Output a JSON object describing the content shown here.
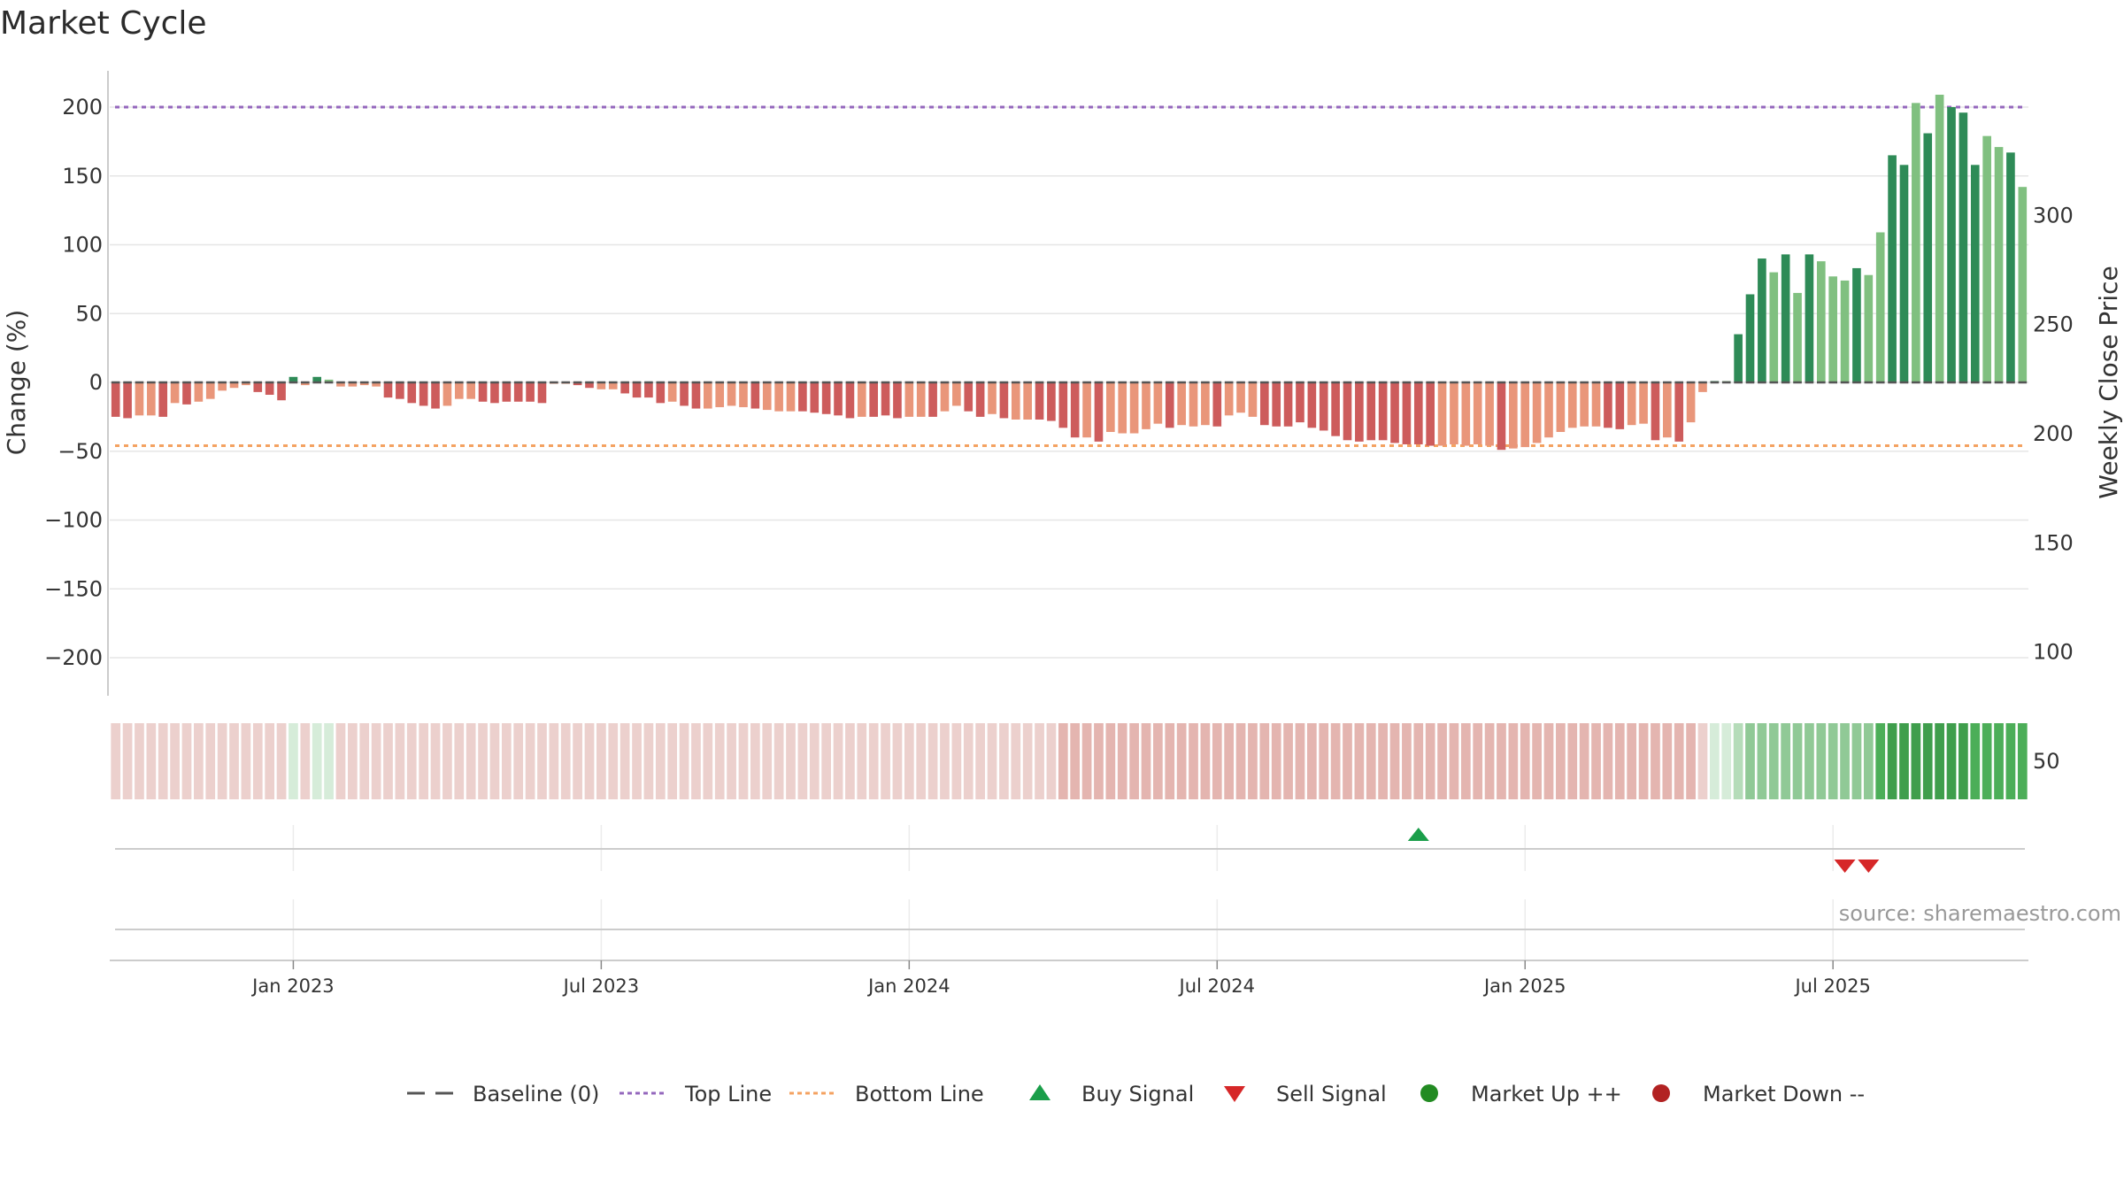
{
  "title": "Market Cycle",
  "source": "source: sharemaestro.com",
  "colors": {
    "bar_pos_dark": "#2e8b57",
    "bar_pos_light": "#80c080",
    "bar_neg_dark": "#cd5c5c",
    "bar_neg_light": "#e9967a",
    "top_line": "#9467bd",
    "bottom_line": "#f4a261",
    "baseline": "#555555",
    "buy": "#1a9e4a",
    "sell": "#d62728",
    "market_up": "#228b22",
    "market_down": "#b22222"
  },
  "legend": [
    {
      "label": "Baseline (0)",
      "kind": "dash",
      "color": "#555555"
    },
    {
      "label": "Top Line",
      "kind": "dotted",
      "color": "#9467bd"
    },
    {
      "label": "Bottom Line",
      "kind": "dotted",
      "color": "#f4a261"
    },
    {
      "label": "Buy Signal",
      "kind": "tri-up",
      "color": "#1a9e4a"
    },
    {
      "label": "Sell Signal",
      "kind": "tri-down",
      "color": "#d62728"
    },
    {
      "label": "Market Up ++",
      "kind": "dot",
      "color": "#228b22"
    },
    {
      "label": "Market Down --",
      "kind": "dot",
      "color": "#b22222"
    }
  ],
  "chart_data": {
    "type": "bar",
    "title": "Market Cycle",
    "ylabel": "Change (%)",
    "y2label": "Weekly Close Price",
    "ylim": [
      -225,
      228
    ],
    "y2lim": [
      36,
      321
    ],
    "yticks": [
      200,
      150,
      100,
      50,
      0,
      -50,
      -100,
      -150,
      -200
    ],
    "ytick_labels": [
      "200",
      "150",
      "100",
      "50",
      "0",
      "−50",
      "−100",
      "−150",
      "−200"
    ],
    "y2ticks": [
      300,
      250,
      200,
      150,
      100,
      50
    ],
    "y2tick_labels": [
      "300",
      "250",
      "200",
      "150",
      "100",
      "50"
    ],
    "top_line": 200,
    "bottom_line": -46,
    "baseline": 0,
    "x_start": "2022-10-17",
    "x_ticks": [
      {
        "label": "Jan 2023",
        "index": 15
      },
      {
        "label": "Jul 2023",
        "index": 41
      },
      {
        "label": "Jan 2024",
        "index": 67
      },
      {
        "label": "Jul 2024",
        "index": 93
      },
      {
        "label": "Jan 2025",
        "index": 119
      },
      {
        "label": "Jul 2025",
        "index": 145
      }
    ],
    "values": [
      -25,
      -26,
      -24,
      -24,
      -25,
      -15,
      -16,
      -14,
      -12,
      -6,
      -4,
      -2,
      -7,
      -9,
      -13,
      4,
      -2,
      4,
      2,
      -3,
      -3,
      -2,
      -3,
      -11,
      -12,
      -15,
      -17,
      -19,
      -17,
      -12,
      -12,
      -14,
      -15,
      -14,
      -14,
      -14,
      -15,
      -1,
      -1,
      -2,
      -4,
      -5,
      -5,
      -8,
      -11,
      -11,
      -15,
      -14,
      -17,
      -19,
      -19,
      -18,
      -17,
      -18,
      -19,
      -20,
      -21,
      -21,
      -21,
      -22,
      -23,
      -24,
      -26,
      -25,
      -25,
      -24,
      -26,
      -25,
      -25,
      -25,
      -21,
      -17,
      -21,
      -25,
      -23,
      -26,
      -27,
      -27,
      -27,
      -28,
      -33,
      -40,
      -40,
      -43,
      -36,
      -37,
      -37,
      -34,
      -30,
      -33,
      -31,
      -32,
      -31,
      -32,
      -24,
      -22,
      -25,
      -31,
      -32,
      -32,
      -29,
      -33,
      -35,
      -39,
      -42,
      -43,
      -42,
      -42,
      -44,
      -45,
      -45,
      -46,
      -46,
      -45,
      -46,
      -45,
      -46,
      -49,
      -48,
      -47,
      -44,
      -40,
      -36,
      -33,
      -32,
      -32,
      -33,
      -34,
      -31,
      -30,
      -42,
      -40,
      -43,
      -29,
      -7,
      1,
      1,
      35,
      64,
      90,
      80,
      93,
      65,
      93,
      88,
      77,
      74,
      83,
      78,
      109,
      165,
      158,
      203,
      181,
      209,
      200,
      196,
      158,
      179,
      171,
      167,
      142
    ],
    "shades": [
      2,
      2,
      1,
      1,
      2,
      1,
      2,
      1,
      1,
      1,
      1,
      1,
      2,
      2,
      2,
      2,
      1,
      2,
      1,
      1,
      1,
      1,
      1,
      2,
      2,
      2,
      2,
      2,
      1,
      1,
      1,
      2,
      2,
      2,
      2,
      2,
      2,
      1,
      1,
      2,
      2,
      1,
      1,
      2,
      2,
      2,
      2,
      1,
      2,
      2,
      1,
      1,
      1,
      1,
      2,
      1,
      1,
      1,
      2,
      2,
      2,
      2,
      2,
      1,
      2,
      2,
      2,
      1,
      1,
      2,
      1,
      1,
      2,
      2,
      1,
      2,
      1,
      1,
      2,
      2,
      2,
      2,
      1,
      2,
      1,
      1,
      1,
      1,
      1,
      2,
      1,
      1,
      1,
      2,
      1,
      1,
      1,
      2,
      2,
      2,
      2,
      2,
      2,
      2,
      2,
      2,
      2,
      2,
      2,
      2,
      2,
      2,
      1,
      1,
      1,
      1,
      1,
      2,
      1,
      1,
      1,
      1,
      1,
      1,
      1,
      1,
      2,
      2,
      1,
      1,
      2,
      1,
      2,
      1,
      1,
      2,
      1,
      2,
      2,
      2,
      1,
      2,
      1,
      2,
      1,
      1,
      1,
      2,
      1,
      1,
      2,
      2,
      1,
      2,
      1,
      2,
      2,
      2,
      1,
      1,
      2,
      1,
      1,
      1
    ],
    "heat": [
      -2,
      -2,
      -2,
      -2,
      -2,
      -2,
      -2,
      -2,
      -2,
      -2,
      -2,
      -2,
      -2,
      -2,
      -2,
      1,
      -2,
      1,
      1,
      -2,
      -2,
      -2,
      -2,
      -2,
      -2,
      -2,
      -2,
      -2,
      -2,
      -2,
      -2,
      -2,
      -2,
      -2,
      -2,
      -2,
      -2,
      -2,
      -2,
      -2,
      -2,
      -2,
      -2,
      -2,
      -2,
      -2,
      -2,
      -2,
      -2,
      -2,
      -2,
      -2,
      -2,
      -2,
      -2,
      -2,
      -2,
      -2,
      -2,
      -2,
      -2,
      -2,
      -2,
      -2,
      -2,
      -2,
      -2,
      -2,
      -2,
      -2,
      -2,
      -2,
      -2,
      -2,
      -2,
      -2,
      -2,
      -2,
      -2,
      -2,
      -3,
      -3,
      -3,
      -3,
      -3,
      -3,
      -3,
      -3,
      -3,
      -3,
      -3,
      -3,
      -3,
      -3,
      -3,
      -3,
      -3,
      -3,
      -3,
      -3,
      -3,
      -3,
      -3,
      -3,
      -3,
      -3,
      -3,
      -3,
      -3,
      -3,
      -3,
      -3,
      -3,
      -3,
      -3,
      -3,
      -3,
      -3,
      -3,
      -3,
      -3,
      -3,
      -3,
      -3,
      -3,
      -3,
      -3,
      -3,
      -3,
      -3,
      -3,
      -3,
      -3,
      -3,
      -2,
      1,
      1,
      2,
      3,
      3,
      3,
      3,
      3,
      3,
      3,
      3,
      3,
      3,
      3,
      4,
      5,
      5,
      5,
      5,
      5,
      5,
      5,
      4,
      4,
      4,
      4,
      4
    ],
    "buy_signals": [
      110
    ],
    "sell_signals": [
      146,
      148
    ],
    "source": "source: sharemaestro.com"
  }
}
